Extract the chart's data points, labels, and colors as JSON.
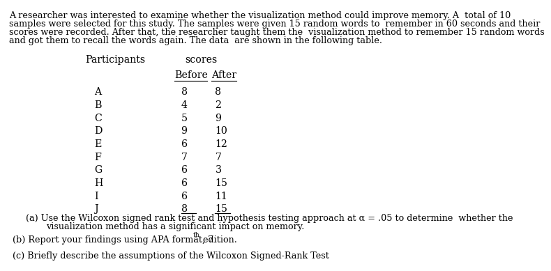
{
  "intro_lines": [
    "A researcher was interested to examine whether the visualization method could improve memory. A  total of 10",
    "samples were selected for this study. The samples were given 15 random words to  remember in 60 seconds and their",
    "scores were recorded. After that, the researcher taught them the  visualization method to remember 15 random words",
    "and got them to recall the words again. The data  are shown in the following table."
  ],
  "col_header_participants": "Participants",
  "col_header_scores": "scores",
  "col_before": "Before",
  "col_after": "After",
  "participants": [
    "A",
    "B",
    "C",
    "D",
    "E",
    "F",
    "G",
    "H",
    "I",
    "J"
  ],
  "before": [
    8,
    4,
    5,
    9,
    6,
    7,
    6,
    6,
    6,
    8
  ],
  "after": [
    8,
    2,
    9,
    10,
    12,
    7,
    3,
    15,
    11,
    15
  ],
  "question_a_line1": "(a) Use the Wilcoxon signed rank test and hypothesis testing approach at α = .05 to determine  whether the",
  "question_a_line2": "visualization method has a significant impact on memory.",
  "question_b_main": "(b) Report your findings using APA format, 7",
  "question_b_sup": "th",
  "question_b_end": " edition.",
  "question_c": "(c) Briefly describe the assumptions of the Wilcoxon Signed-Rank Test",
  "bg_color": "#ffffff",
  "text_color": "#000000",
  "font_size_body": 9.2,
  "font_size_table": 10.2,
  "font_family": "DejaVu Serif"
}
